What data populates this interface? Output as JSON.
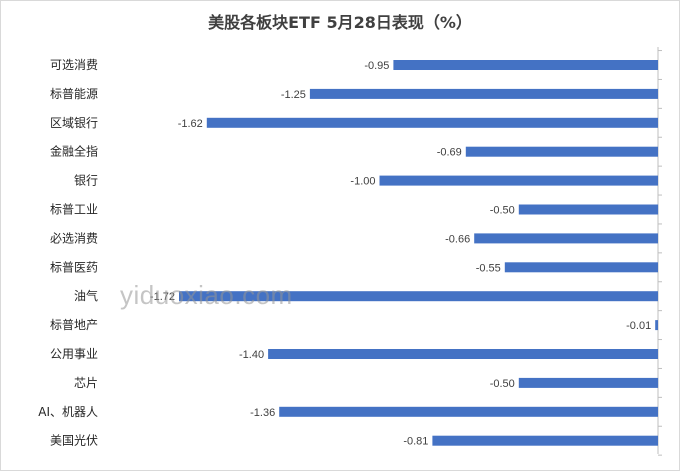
{
  "chart_data": {
    "type": "bar",
    "orientation": "horizontal",
    "title": "美股各板块ETF  5月28日表现（%）",
    "categories": [
      "可选消费",
      "标普能源",
      "区域银行",
      "金融全指",
      "银行",
      "标普工业",
      "必选消费",
      "标普医药",
      "油气",
      "标普地产",
      "公用事业",
      "芯片",
      "AI、机器人",
      "美国光伏"
    ],
    "values": [
      -0.95,
      -1.25,
      -1.62,
      -0.69,
      -1.0,
      -0.5,
      -0.66,
      -0.55,
      -1.72,
      -0.01,
      -1.4,
      -0.5,
      -1.36,
      -0.81
    ],
    "value_labels": [
      "-0.95",
      "-1.25",
      "-1.62",
      "-0.69",
      "-1.00",
      "-0.50",
      "-0.66",
      "-0.55",
      "-1.72",
      "-0.01",
      "-1.40",
      "-0.50",
      "-1.36",
      "-0.81"
    ],
    "xlim": [
      -1.8,
      0
    ],
    "bar_color": "#4472C4",
    "grid": false,
    "legend": "none"
  },
  "watermark": "yiduoxiao.com"
}
